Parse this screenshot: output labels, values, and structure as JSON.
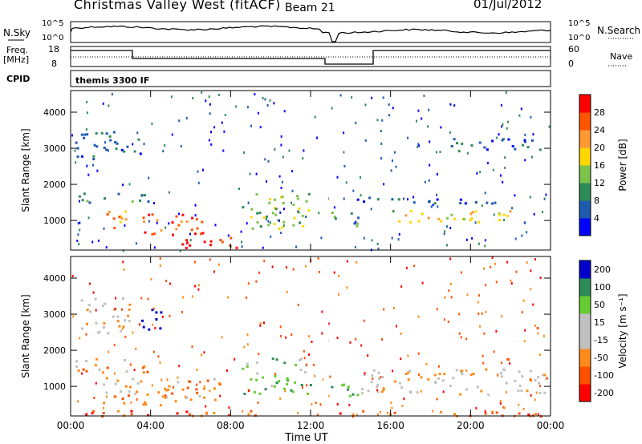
{
  "header": {
    "title": "Christmas Valley West (fitACF)",
    "beam": "Beam 21",
    "date": "01/Jul/2012"
  },
  "strip_labels": {
    "nsky": "N.Sky",
    "nsearch": "N.Search",
    "freq_line1": "Freq.",
    "freq_line2": "[MHz]",
    "nave": "Nave",
    "cpid": "CPID",
    "cpid_value": "themis 3300 IF",
    "nsky_ticks": [
      "10^5",
      "10^0"
    ],
    "nsearch_ticks": [
      "10^5",
      "10^0"
    ],
    "freq_ticks": [
      "18",
      "8"
    ],
    "nave_ticks": [
      "60",
      "0"
    ]
  },
  "colors": {
    "power_scale": [
      "#0000ff",
      "#1e5bb0",
      "#2e8b57",
      "#7cc24b",
      "#ffd700",
      "#ff9933",
      "#ff5500",
      "#ff0000"
    ],
    "velocity_scale": [
      "#ff0000",
      "#ff5000",
      "#ff8c1a",
      "#c0c0c0",
      "#c0c0c0",
      "#66cc33",
      "#2e8b57",
      "#0000cc"
    ]
  },
  "chart_data": [
    {
      "type": "heatmap",
      "title": "",
      "ylabel": "Slant Range [km]",
      "ylim": [
        180,
        4600
      ],
      "yticks": [
        "1000",
        "2000",
        "3000",
        "4000"
      ],
      "xticks": [
        "00:00",
        "04:00",
        "08:00",
        "12:00",
        "16:00",
        "20:00",
        "00:00"
      ],
      "colorbar": {
        "label": "Power [dB]",
        "ticks": [
          "4",
          "8",
          "12",
          "16",
          "20",
          "24",
          "28"
        ],
        "range": [
          0,
          32
        ]
      },
      "scatter_regions": [
        {
          "t": [
            0.2,
            3.5
          ],
          "r": [
            2700,
            3500
          ],
          "level": 1
        },
        {
          "t": [
            0.3,
            4.2
          ],
          "r": [
            1500,
            1800
          ],
          "level": 2
        },
        {
          "t": [
            1.5,
            3.0
          ],
          "r": [
            800,
            1400
          ],
          "level": 5
        },
        {
          "t": [
            3.5,
            7.0
          ],
          "r": [
            600,
            1200
          ],
          "level": 6
        },
        {
          "t": [
            5.5,
            8.5
          ],
          "r": [
            250,
            700
          ],
          "level": 7
        },
        {
          "t": [
            8.5,
            12.0
          ],
          "r": [
            800,
            1800
          ],
          "level": 3
        },
        {
          "t": [
            13.0,
            14.5
          ],
          "r": [
            800,
            1300
          ],
          "level": 2
        },
        {
          "t": [
            16.0,
            22.0
          ],
          "r": [
            900,
            1300
          ],
          "level": 4
        },
        {
          "t": [
            19.0,
            23.8
          ],
          "r": [
            2900,
            3300
          ],
          "level": 1
        },
        {
          "t": [
            14.0,
            22.0
          ],
          "r": [
            1500,
            1700
          ],
          "level": 1
        }
      ]
    },
    {
      "type": "heatmap",
      "title": "",
      "ylabel": "Slant Range [km]",
      "ylim": [
        180,
        4600
      ],
      "yticks": [
        "1000",
        "2000",
        "3000",
        "4000"
      ],
      "xticks": [
        "00:00",
        "04:00",
        "08:00",
        "12:00",
        "16:00",
        "20:00",
        "00:00"
      ],
      "xlabel": "Time UT",
      "colorbar": {
        "label": "Velocity [m s⁻¹]",
        "ticks": [
          "-200",
          "-100",
          "-50",
          "-15",
          "15",
          "50",
          "100",
          "200"
        ],
        "range": [
          -250,
          250
        ]
      },
      "scatter_regions": [
        {
          "t": [
            0.2,
            4.0
          ],
          "r": [
            1400,
            1800
          ],
          "level": 2
        },
        {
          "t": [
            0.5,
            3.0
          ],
          "r": [
            2500,
            3500
          ],
          "level": 3
        },
        {
          "t": [
            3.5,
            4.5
          ],
          "r": [
            2500,
            3200
          ],
          "level": 7
        },
        {
          "t": [
            1.5,
            7.5
          ],
          "r": [
            500,
            1300
          ],
          "level": 2
        },
        {
          "t": [
            8.5,
            12.0
          ],
          "r": [
            800,
            1800
          ],
          "level": 5
        },
        {
          "t": [
            13.0,
            14.5
          ],
          "r": [
            700,
            1200
          ],
          "level": 5
        },
        {
          "t": [
            14.5,
            23.8
          ],
          "r": [
            800,
            1500
          ],
          "level": 3
        },
        {
          "t": [
            0.0,
            24.0
          ],
          "r": [
            200,
            350
          ],
          "level": 1
        }
      ]
    }
  ]
}
